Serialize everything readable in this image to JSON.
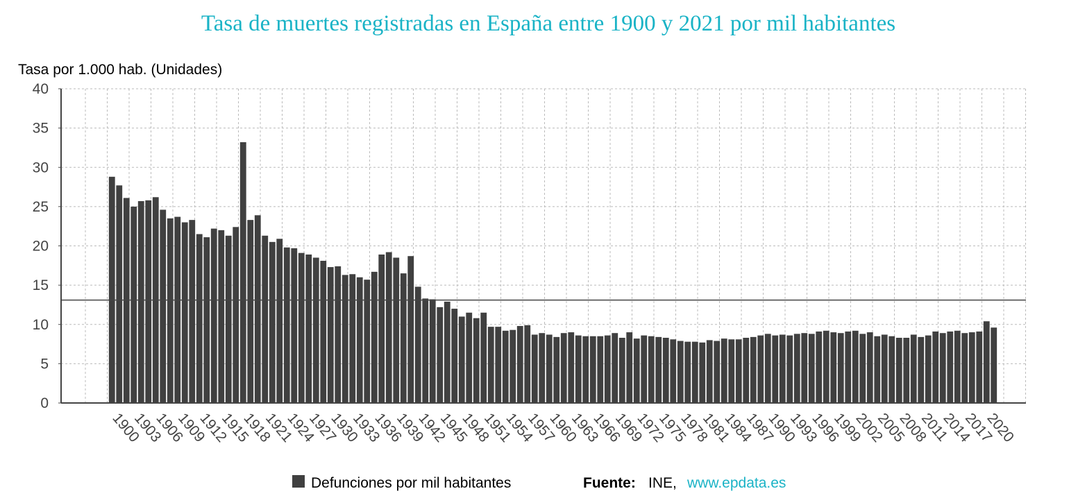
{
  "chart_data": {
    "type": "bar",
    "title": "Tasa de muertes registradas en España entre 1900 y 2021 por mil habitantes",
    "y_label": "Tasa por 1.000 hab. (Unidades)",
    "categories": [
      "1900",
      null,
      null,
      "1903",
      null,
      null,
      "1906",
      null,
      null,
      "1909",
      null,
      null,
      "1912",
      null,
      null,
      "1915",
      null,
      null,
      "1918",
      null,
      null,
      "1921",
      null,
      null,
      "1924",
      null,
      null,
      "1927",
      null,
      null,
      "1930",
      null,
      null,
      "1933",
      null,
      null,
      "1936",
      null,
      null,
      "1939",
      null,
      null,
      "1942",
      null,
      null,
      "1945",
      null,
      null,
      "1948",
      null,
      null,
      "1951",
      null,
      null,
      "1954",
      null,
      null,
      "1957",
      null,
      null,
      "1960",
      null,
      null,
      "1963",
      null,
      null,
      "1966",
      null,
      null,
      "1969",
      null,
      null,
      "1972",
      null,
      null,
      "1975",
      null,
      null,
      "1978",
      null,
      null,
      "1981",
      null,
      null,
      "1984",
      null,
      null,
      "1987",
      null,
      null,
      "1990",
      null,
      null,
      "1993",
      null,
      null,
      "1996",
      null,
      null,
      "1999",
      null,
      null,
      "2002",
      null,
      null,
      "2005",
      null,
      null,
      "2008",
      null,
      null,
      "2011",
      null,
      null,
      "2014",
      null,
      null,
      "2017",
      null,
      null,
      "2020",
      null
    ],
    "series": [
      {
        "name": "Defunciones por mil habitantes",
        "color": "#404040",
        "values": [
          28.8,
          27.7,
          26.1,
          25.0,
          25.7,
          25.8,
          26.2,
          24.6,
          23.5,
          23.7,
          23.0,
          23.3,
          21.5,
          21.1,
          22.2,
          22.0,
          21.3,
          22.4,
          33.2,
          23.3,
          23.9,
          21.3,
          20.5,
          20.9,
          19.8,
          19.7,
          19.1,
          18.9,
          18.5,
          18.1,
          17.3,
          17.4,
          16.3,
          16.4,
          16.0,
          15.7,
          16.7,
          18.9,
          19.2,
          18.5,
          16.5,
          18.7,
          14.8,
          13.3,
          13.2,
          12.2,
          12.9,
          12.0,
          11.0,
          11.5,
          10.8,
          11.5,
          9.7,
          9.7,
          9.2,
          9.3,
          9.8,
          9.9,
          8.7,
          8.9,
          8.7,
          8.4,
          8.9,
          9.0,
          8.6,
          8.5,
          8.5,
          8.5,
          8.6,
          8.9,
          8.3,
          9.0,
          8.2,
          8.6,
          8.5,
          8.4,
          8.3,
          8.1,
          7.9,
          7.8,
          7.8,
          7.7,
          8.0,
          7.9,
          8.2,
          8.1,
          8.1,
          8.3,
          8.4,
          8.6,
          8.8,
          8.6,
          8.7,
          8.6,
          8.8,
          8.9,
          8.8,
          9.1,
          9.2,
          9.0,
          8.9,
          9.1,
          9.2,
          8.8,
          9.0,
          8.5,
          8.7,
          8.5,
          8.3,
          8.3,
          8.7,
          8.4,
          8.6,
          9.1,
          8.9,
          9.1,
          9.2,
          8.9,
          9.0,
          9.1,
          10.4,
          9.6
        ]
      }
    ],
    "reference_line": 13.1,
    "ylim": [
      0,
      40
    ],
    "yticks": [
      0,
      5,
      10,
      15,
      20,
      25,
      30,
      35,
      40
    ],
    "grid": true,
    "source": {
      "label": "Fuente:",
      "text": "INE,",
      "link": "www.epdata.es"
    }
  }
}
